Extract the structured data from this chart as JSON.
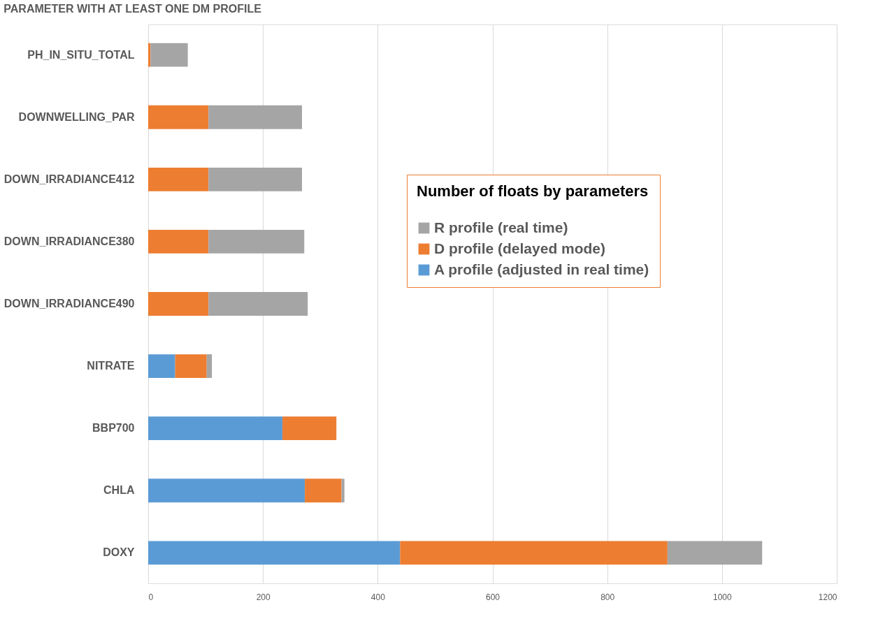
{
  "chart_data": {
    "type": "bar",
    "orientation": "horizontal",
    "stacked": true,
    "title": "PARAMETER WITH AT LEAST ONE DM PROFILE",
    "legend_title": "Number of floats by parameters",
    "categories": [
      "PH_IN_SITU_TOTAL",
      "DOWNWELLING_PAR",
      "DOWN_IRRADIANCE412",
      "DOWN_IRRADIANCE380",
      "DOWN_IRRADIANCE490",
      "NITRATE",
      "BBP700",
      "CHLA",
      "DOXY"
    ],
    "series": [
      {
        "name": "A profile (adjusted in real time)",
        "color": "#5b9bd5",
        "values": [
          0,
          0,
          0,
          0,
          0,
          47,
          234,
          273,
          439
        ]
      },
      {
        "name": "D profile (delayed mode)",
        "color": "#ed7d31",
        "values": [
          4,
          105,
          105,
          105,
          105,
          55,
          94,
          64,
          466
        ]
      },
      {
        "name": "R profile (real time)",
        "color": "#a5a5a5",
        "values": [
          65,
          163,
          163,
          167,
          173,
          9,
          0,
          5,
          165
        ]
      }
    ],
    "xlim": [
      0,
      1200
    ],
    "xticks": [
      0,
      200,
      400,
      600,
      800,
      1000,
      1200
    ],
    "grid": "x",
    "legend": "right"
  }
}
